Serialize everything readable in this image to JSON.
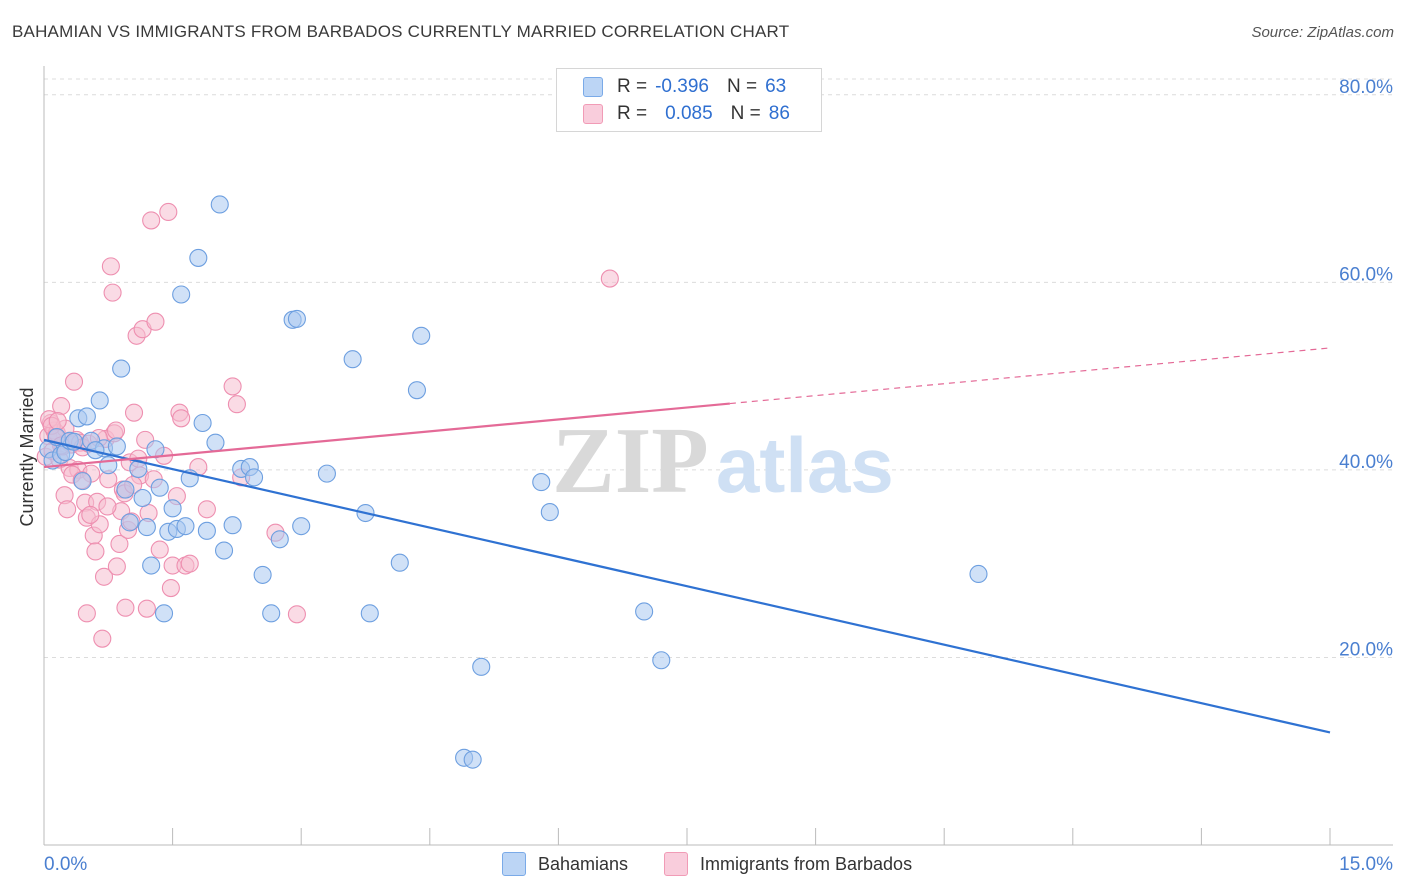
{
  "header": {
    "title": "BAHAMIAN VS IMMIGRANTS FROM BARBADOS CURRENTLY MARRIED CORRELATION CHART",
    "source": "Source: ZipAtlas.com"
  },
  "legend": {
    "rows": [
      {
        "r_label": "R =",
        "r_value": "-0.396",
        "n_label": "N =",
        "n_value": "63",
        "color": "#7aaae8"
      },
      {
        "r_label": "R =",
        "r_value": "0.085",
        "n_label": "N =",
        "n_value": "86",
        "color": "#f19bb6"
      }
    ]
  },
  "watermark": {
    "zip": "ZIP",
    "atlas": "atlas"
  },
  "colors": {
    "blue_fill": "#a9c8f0",
    "blue_stroke": "#6d9fe0",
    "blue_line": "#2f72d2",
    "pink_fill": "#f6bdd0",
    "pink_stroke": "#ee8fb0",
    "pink_line": "#e46a97",
    "grid": "#dcdcdc",
    "tick_label": "#4a7fd0"
  },
  "chart_data": {
    "type": "scatter",
    "title": "BAHAMIAN VS IMMIGRANTS FROM BARBADOS CURRENTLY MARRIED CORRELATION CHART",
    "xlabel": "",
    "ylabel": "Currently Married",
    "xlim": [
      0,
      15
    ],
    "ylim": [
      0,
      82
    ],
    "x_tick_labels": [
      "0.0%",
      "15.0%"
    ],
    "y_ticks": [
      20,
      40,
      60,
      80
    ],
    "y_tick_labels": [
      "20.0%",
      "40.0%",
      "60.0%",
      "80.0%"
    ],
    "grid": true,
    "legend_position": "bottom",
    "series": [
      {
        "name": "Bahamians",
        "color": "#7aaae8",
        "trend": {
          "x": [
            0,
            15
          ],
          "y": [
            43.2,
            12.0
          ],
          "dashed_from": null
        },
        "points": [
          [
            0.05,
            42.2
          ],
          [
            0.1,
            41.0
          ],
          [
            0.15,
            43.5
          ],
          [
            0.2,
            41.6
          ],
          [
            0.25,
            41.9
          ],
          [
            0.3,
            43.1
          ],
          [
            0.4,
            45.5
          ],
          [
            0.45,
            38.8
          ],
          [
            0.5,
            45.7
          ],
          [
            0.55,
            43.1
          ],
          [
            0.65,
            47.4
          ],
          [
            0.7,
            42.3
          ],
          [
            0.75,
            40.5
          ],
          [
            0.85,
            42.5
          ],
          [
            0.9,
            50.8
          ],
          [
            0.95,
            37.9
          ],
          [
            1.0,
            34.4
          ],
          [
            1.1,
            40.1
          ],
          [
            1.15,
            37.0
          ],
          [
            1.2,
            33.9
          ],
          [
            1.25,
            29.8
          ],
          [
            1.3,
            42.2
          ],
          [
            1.35,
            38.1
          ],
          [
            1.4,
            24.7
          ],
          [
            1.45,
            33.4
          ],
          [
            1.5,
            35.9
          ],
          [
            1.55,
            33.7
          ],
          [
            1.6,
            58.7
          ],
          [
            1.65,
            34.0
          ],
          [
            1.7,
            39.1
          ],
          [
            1.8,
            62.6
          ],
          [
            1.85,
            45.0
          ],
          [
            1.9,
            33.5
          ],
          [
            2.0,
            42.9
          ],
          [
            2.05,
            68.3
          ],
          [
            2.1,
            31.4
          ],
          [
            2.2,
            34.1
          ],
          [
            2.3,
            40.1
          ],
          [
            2.4,
            40.3
          ],
          [
            2.45,
            39.2
          ],
          [
            2.55,
            28.8
          ],
          [
            2.65,
            24.7
          ],
          [
            2.75,
            32.6
          ],
          [
            3.0,
            34.0
          ],
          [
            2.9,
            56.0
          ],
          [
            2.95,
            56.1
          ],
          [
            3.3,
            39.6
          ],
          [
            3.6,
            51.8
          ],
          [
            3.75,
            35.4
          ],
          [
            3.8,
            24.7
          ],
          [
            4.15,
            30.1
          ],
          [
            4.35,
            48.5
          ],
          [
            4.4,
            54.3
          ],
          [
            4.9,
            9.3
          ],
          [
            5.0,
            9.1
          ],
          [
            5.1,
            19.0
          ],
          [
            5.8,
            38.7
          ],
          [
            5.9,
            35.5
          ],
          [
            7.0,
            24.9
          ],
          [
            7.2,
            19.7
          ],
          [
            10.9,
            28.9
          ],
          [
            0.35,
            43.0
          ],
          [
            0.6,
            42.1
          ]
        ]
      },
      {
        "name": "Immigrants from Barbados",
        "color": "#f19bb6",
        "trend": {
          "x": [
            0,
            15
          ],
          "y": [
            40.3,
            53.0
          ],
          "dashed_from": 8.0
        },
        "points": [
          [
            0.02,
            41.4
          ],
          [
            0.05,
            43.6
          ],
          [
            0.08,
            45.0
          ],
          [
            0.1,
            42.0
          ],
          [
            0.12,
            44.2
          ],
          [
            0.15,
            43.9
          ],
          [
            0.18,
            41.1
          ],
          [
            0.2,
            46.8
          ],
          [
            0.22,
            42.5
          ],
          [
            0.25,
            44.4
          ],
          [
            0.28,
            43.0
          ],
          [
            0.3,
            40.2
          ],
          [
            0.32,
            42.7
          ],
          [
            0.35,
            49.4
          ],
          [
            0.38,
            43.2
          ],
          [
            0.4,
            40.0
          ],
          [
            0.42,
            42.9
          ],
          [
            0.45,
            42.4
          ],
          [
            0.48,
            36.5
          ],
          [
            0.5,
            34.9
          ],
          [
            0.52,
            42.8
          ],
          [
            0.55,
            39.6
          ],
          [
            0.58,
            33.0
          ],
          [
            0.6,
            31.3
          ],
          [
            0.62,
            36.6
          ],
          [
            0.65,
            34.2
          ],
          [
            0.68,
            22.0
          ],
          [
            0.7,
            28.6
          ],
          [
            0.72,
            43.3
          ],
          [
            0.75,
            39.0
          ],
          [
            0.78,
            61.7
          ],
          [
            0.8,
            58.9
          ],
          [
            0.82,
            43.9
          ],
          [
            0.85,
            29.7
          ],
          [
            0.88,
            32.1
          ],
          [
            0.9,
            35.6
          ],
          [
            0.92,
            37.9
          ],
          [
            0.95,
            25.3
          ],
          [
            0.98,
            33.6
          ],
          [
            1.0,
            40.8
          ],
          [
            1.02,
            34.5
          ],
          [
            1.05,
            46.1
          ],
          [
            1.08,
            54.3
          ],
          [
            1.1,
            41.2
          ],
          [
            1.12,
            39.4
          ],
          [
            1.15,
            55.0
          ],
          [
            1.18,
            43.2
          ],
          [
            1.2,
            25.2
          ],
          [
            1.22,
            35.4
          ],
          [
            1.25,
            66.6
          ],
          [
            1.28,
            39.0
          ],
          [
            1.3,
            55.8
          ],
          [
            1.35,
            31.5
          ],
          [
            1.4,
            41.5
          ],
          [
            1.45,
            67.5
          ],
          [
            1.48,
            27.4
          ],
          [
            1.5,
            29.8
          ],
          [
            1.55,
            37.2
          ],
          [
            1.58,
            46.1
          ],
          [
            1.6,
            45.5
          ],
          [
            1.65,
            29.8
          ],
          [
            1.7,
            30.0
          ],
          [
            1.8,
            40.3
          ],
          [
            1.9,
            35.8
          ],
          [
            2.2,
            48.9
          ],
          [
            2.25,
            47.0
          ],
          [
            2.3,
            39.2
          ],
          [
            2.7,
            33.3
          ],
          [
            2.95,
            24.6
          ],
          [
            6.6,
            60.4
          ],
          [
            0.06,
            45.4
          ],
          [
            0.09,
            44.7
          ],
          [
            0.14,
            43.5
          ],
          [
            0.24,
            37.3
          ],
          [
            0.27,
            35.8
          ],
          [
            0.33,
            39.5
          ],
          [
            0.44,
            38.9
          ],
          [
            0.5,
            24.7
          ],
          [
            0.54,
            35.2
          ],
          [
            0.64,
            43.4
          ],
          [
            0.74,
            36.1
          ],
          [
            0.84,
            44.2
          ],
          [
            0.94,
            37.5
          ],
          [
            1.04,
            38.4
          ],
          [
            0.2,
            42.6
          ],
          [
            0.16,
            45.2
          ]
        ]
      }
    ]
  }
}
